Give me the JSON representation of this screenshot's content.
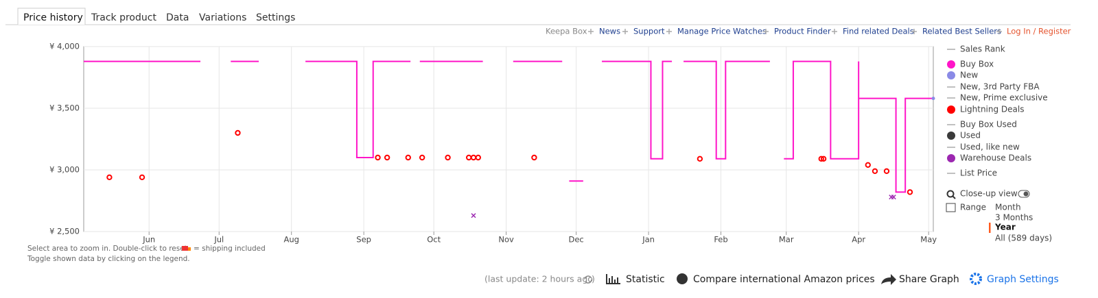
{
  "tabs": [
    "Price history",
    "Track product",
    "Data",
    "Variations",
    "Settings"
  ],
  "links": [
    "Keepa Box",
    "News",
    "Support",
    "Manage Price Watches",
    "Product Finder",
    "Find related Deals",
    "Related Best Sellers",
    "Log In / Register"
  ],
  "chart_data": {
    "type": "line",
    "ylim": [
      2500,
      4000
    ],
    "yticks": [
      {
        "value": 2500,
        "label": "¥ 2,500"
      },
      {
        "value": 3000,
        "label": "¥ 3,000"
      },
      {
        "value": 3500,
        "label": "¥ 3,500"
      },
      {
        "value": 4000,
        "label": "¥ 4,000"
      }
    ],
    "xlim": [
      0,
      364
    ],
    "xticks": [
      {
        "value": 28,
        "label": "Jun"
      },
      {
        "value": 58,
        "label": "Jul"
      },
      {
        "value": 89,
        "label": "Aug"
      },
      {
        "value": 120,
        "label": "Sep"
      },
      {
        "value": 150,
        "label": "Oct"
      },
      {
        "value": 181,
        "label": "Nov"
      },
      {
        "value": 211,
        "label": "Dec"
      },
      {
        "value": 242,
        "label": "Jan"
      },
      {
        "value": 273,
        "label": "Feb"
      },
      {
        "value": 301,
        "label": "Mar"
      },
      {
        "value": 332,
        "label": "Apr"
      },
      {
        "value": 362,
        "label": "May"
      }
    ],
    "grid": true,
    "series": [
      {
        "name": "Buy Box",
        "color": "#ff14c8",
        "style": "step-line",
        "x": [
          0,
          50,
          null,
          63,
          75,
          null,
          95,
          117,
          117,
          124,
          124,
          140,
          null,
          144,
          171,
          null,
          184,
          205,
          null,
          208,
          214,
          null,
          222,
          243,
          243,
          248,
          248,
          252,
          null,
          257,
          271,
          271,
          275,
          275,
          294,
          null,
          300,
          304,
          304,
          320,
          320,
          332,
          332,
          332,
          348,
          348,
          352,
          352,
          364
        ],
        "values": [
          3880,
          3880,
          null,
          3880,
          3880,
          null,
          3880,
          3880,
          3100,
          3100,
          3880,
          3880,
          null,
          3880,
          3880,
          null,
          3880,
          3880,
          null,
          2910,
          2910,
          null,
          3880,
          3880,
          3090,
          3090,
          3880,
          3880,
          null,
          3880,
          3880,
          3090,
          3090,
          3880,
          3880,
          null,
          3090,
          3090,
          3880,
          3880,
          3090,
          3090,
          3880,
          3580,
          3580,
          2820,
          2820,
          3580,
          3580
        ]
      },
      {
        "name": "New",
        "color": "#8a8ae6",
        "style": "point",
        "x": [
          364
        ],
        "values": [
          3580
        ]
      },
      {
        "name": "Lightning Deals",
        "color": "#ff0000",
        "style": "circle",
        "x": [
          11,
          25,
          66,
          126,
          130,
          139,
          145,
          156,
          165,
          167,
          169,
          193,
          264,
          316,
          317,
          336,
          339,
          344,
          354
        ],
        "values": [
          2940,
          2940,
          3300,
          3100,
          3100,
          3100,
          3100,
          3100,
          3100,
          3100,
          3100,
          3100,
          3090,
          3090,
          3090,
          3040,
          2990,
          2990,
          2820
        ]
      },
      {
        "name": "Warehouse Deals",
        "color": "#9c27b0",
        "style": "cross",
        "x": [
          167,
          346,
          347
        ],
        "values": [
          2630,
          2780,
          2780
        ]
      }
    ]
  },
  "legend_items": [
    {
      "name": "Sales Rank",
      "color": "#aaaaaa",
      "marker": "line"
    },
    {
      "name": "New, 3rd Party FBA",
      "color": "#aaaaaa",
      "marker": "line"
    },
    {
      "name": "New, Prime exclusive",
      "color": "#aaaaaa",
      "marker": "line"
    },
    {
      "name": "Buy Box Used",
      "color": "#aaaaaa",
      "marker": "line"
    },
    {
      "name": "Used",
      "color": "#3a3a3a",
      "marker": "dot"
    },
    {
      "name": "Used, like new",
      "color": "#aaaaaa",
      "marker": "line"
    },
    {
      "name": "List Price",
      "color": "#aaaaaa",
      "marker": "line"
    }
  ],
  "controls": {
    "close_up": "Close-up view",
    "range": "Range",
    "range_options": [
      "Month",
      "3 Months",
      "Year",
      "All (589 days)"
    ]
  },
  "notes": [
    "Select area to zoom in. Double-click to reset.",
    "= shipping included",
    "Toggle shown data by clicking on the legend."
  ],
  "footer": {
    "last_update": "(last update: 2 hours ago",
    "last_update_end": ")",
    "statistic": "Statistic",
    "compare": "Compare international Amazon prices",
    "share": "Share Graph",
    "settings": "Graph Settings"
  }
}
